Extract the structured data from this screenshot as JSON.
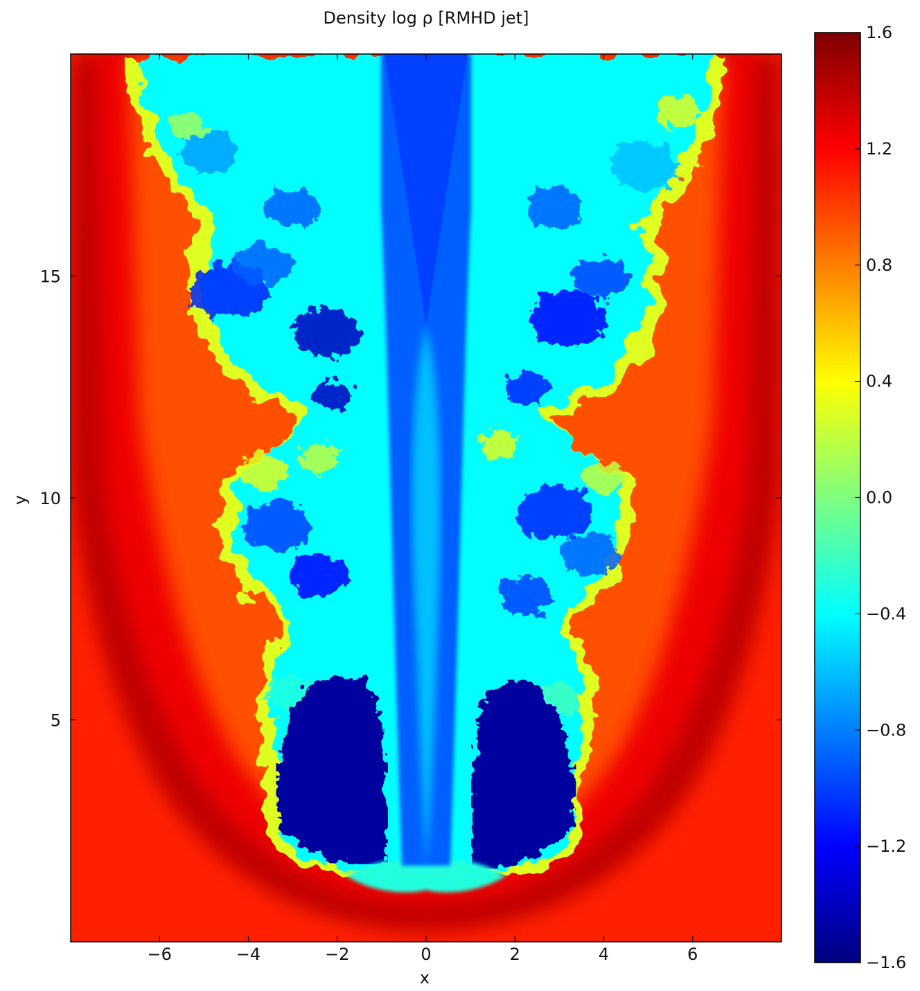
{
  "chart_data": {
    "type": "heatmap",
    "title": "Density log ρ [RMHD jet]",
    "xlabel": "x",
    "ylabel": "y",
    "xlim": [
      -8,
      8
    ],
    "ylim": [
      0,
      20
    ],
    "xticks": [
      -6,
      -4,
      -2,
      0,
      2,
      4,
      6
    ],
    "xtick_labels": [
      "−6",
      "−4",
      "−2",
      "0",
      "2",
      "4",
      "6"
    ],
    "yticks": [
      5,
      10,
      15
    ],
    "ytick_labels": [
      "5",
      "10",
      "15"
    ],
    "colorbar": {
      "min": -1.6,
      "max": 1.6,
      "ticks": [
        1.6,
        1.2,
        0.8,
        0.4,
        0.0,
        -0.4,
        -0.8,
        -1.2,
        -1.6
      ],
      "tick_labels": [
        "1.6",
        "1.2",
        "0.8",
        "0.4",
        "0.0",
        "−0.4",
        "−0.8",
        "−1.2",
        "−1.6"
      ],
      "colormap": "jet",
      "colors": [
        "#00007f",
        "#0000ff",
        "#007fff",
        "#00ffff",
        "#7fff7f",
        "#ffff00",
        "#ff7f00",
        "#ff0000",
        "#7f0000"
      ]
    },
    "field_description_values": {
      "ambient_medium": 1.1,
      "bow_shock_shell": 1.4,
      "cocoon_edge": 0.3,
      "cocoon_interior": -0.4,
      "jet_spine": -0.9,
      "jet_head_cavity": -1.5,
      "jet_head_reflection": -0.3
    },
    "grid": false,
    "legend": "none"
  }
}
